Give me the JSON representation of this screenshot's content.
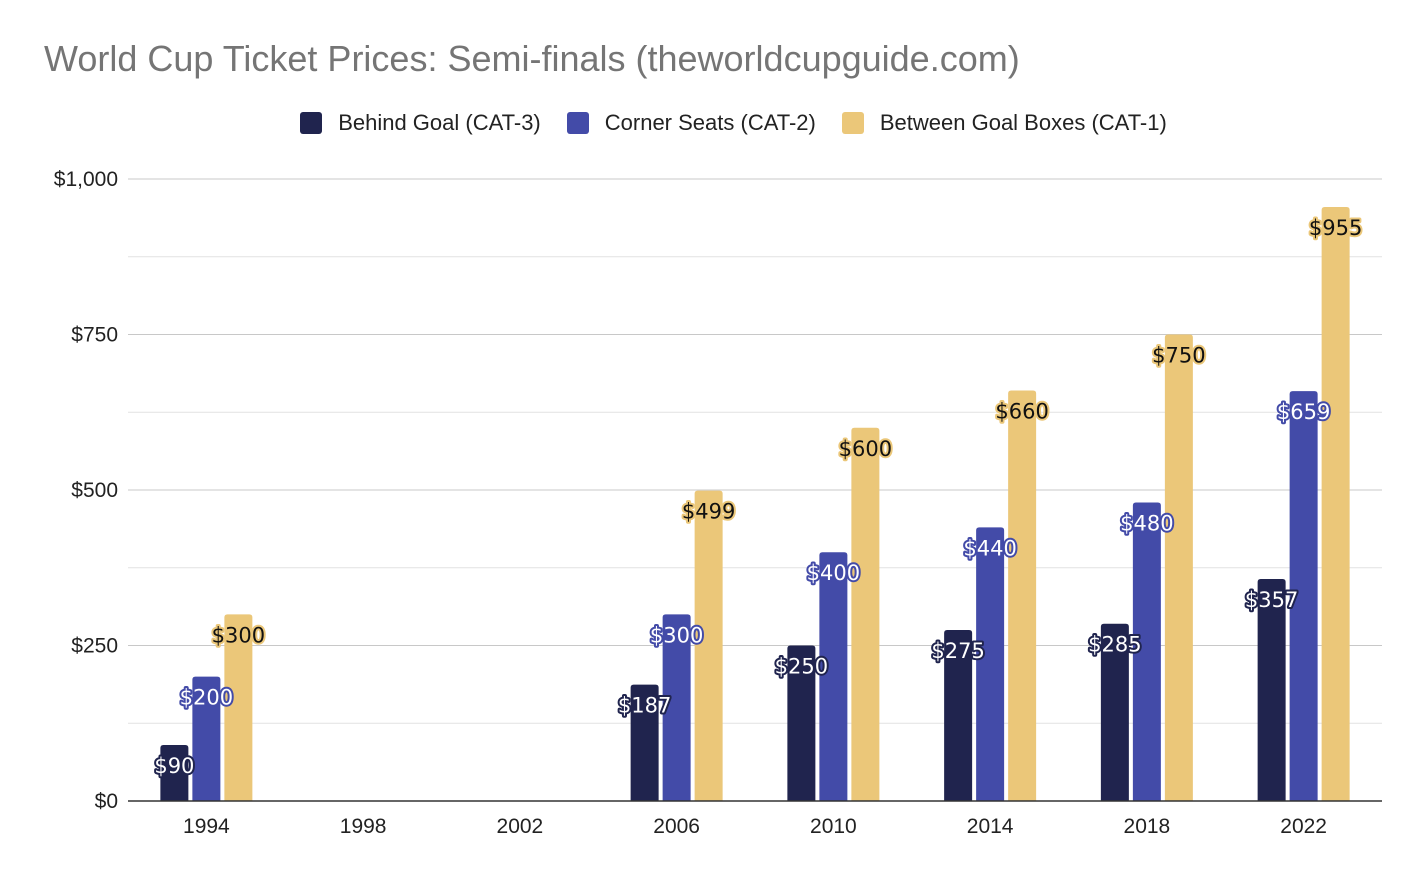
{
  "chart_data": {
    "type": "bar",
    "title": "World Cup Ticket Prices: Semi-finals (theworldcupguide.com)",
    "xlabel": "",
    "ylabel": "",
    "categories": [
      "1994",
      "1998",
      "2002",
      "2006",
      "2010",
      "2014",
      "2018",
      "2022"
    ],
    "series": [
      {
        "name": "Behind Goal (CAT-3)",
        "color": "#20244e",
        "values": [
          90,
          null,
          null,
          187,
          250,
          275,
          285,
          357
        ],
        "labels": [
          "$90",
          "",
          "",
          "$187",
          "$250",
          "$275",
          "$285",
          "$357"
        ]
      },
      {
        "name": "Corner Seats (CAT-2)",
        "color": "#434ba8",
        "values": [
          200,
          null,
          null,
          300,
          400,
          440,
          480,
          659
        ],
        "labels": [
          "$200",
          "",
          "",
          "$300",
          "$400",
          "$440",
          "$480",
          "$659"
        ]
      },
      {
        "name": "Between Goal Boxes (CAT-1)",
        "color": "#ebc779",
        "values": [
          300,
          null,
          null,
          499,
          600,
          660,
          750,
          955
        ],
        "labels": [
          "$300",
          "",
          "",
          "$499",
          "$600",
          "$660",
          "$750",
          "$955"
        ]
      }
    ],
    "ylim": [
      0,
      1000
    ],
    "yticks": [
      0,
      250,
      500,
      750,
      1000
    ],
    "ytick_labels": [
      "$0",
      "$250",
      "$500",
      "$750",
      "$1,000"
    ],
    "grid": true,
    "legend_position": "top"
  }
}
